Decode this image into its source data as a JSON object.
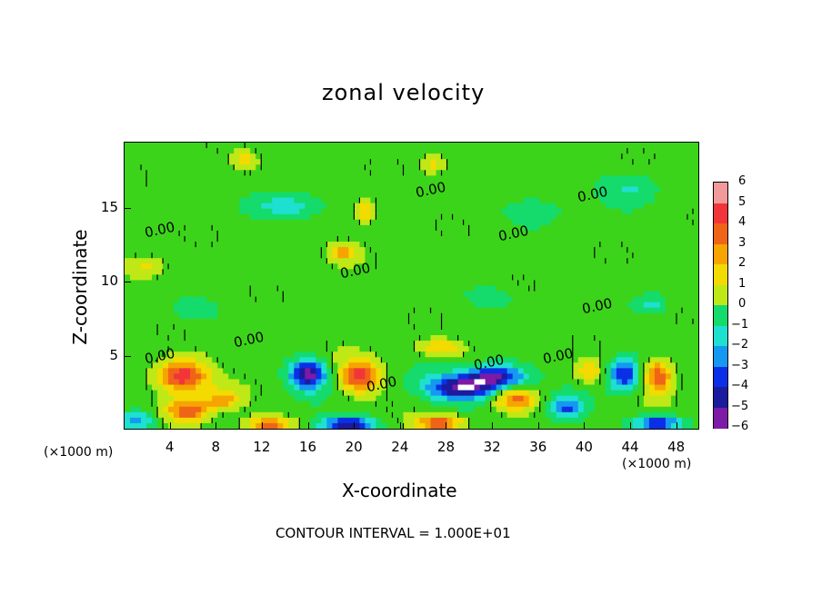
{
  "chart_data": {
    "type": "heatmap",
    "title": "zonal velocity",
    "xlabel": "X-coordinate",
    "ylabel": "Z-coordinate",
    "x_unit": "(×1000 m)",
    "x_ticks": [
      "4",
      "8",
      "12",
      "16",
      "20",
      "24",
      "28",
      "32",
      "36",
      "40",
      "44",
      "48"
    ],
    "y_ticks": [
      "5",
      "10",
      "15"
    ],
    "xlim": [
      0,
      50
    ],
    "ylim": [
      0,
      19.5
    ],
    "colorbar": {
      "ticks": [
        "6",
        "5",
        "4",
        "3",
        "2",
        "1",
        "0",
        "−1",
        "−2",
        "−3",
        "−4",
        "−5",
        "−6"
      ],
      "range": [
        -6,
        6
      ]
    },
    "contour_level": "0.00",
    "contour_label_positions_data": [
      {
        "x": 3.2,
        "y": 13.5
      },
      {
        "x": 26.8,
        "y": 16.2
      },
      {
        "x": 40.8,
        "y": 15.9
      },
      {
        "x": 34.0,
        "y": 13.2
      },
      {
        "x": 20.2,
        "y": 10.7
      },
      {
        "x": 41.2,
        "y": 8.3
      },
      {
        "x": 11.0,
        "y": 6.0
      },
      {
        "x": 3.2,
        "y": 4.9
      },
      {
        "x": 31.8,
        "y": 4.5
      },
      {
        "x": 37.8,
        "y": 4.9
      },
      {
        "x": 22.5,
        "y": 3.0
      }
    ],
    "features": [
      {
        "x": 5.0,
        "y": 3.6,
        "value": 5.5,
        "sx": 2.2,
        "sy": 1.1
      },
      {
        "x": 5.5,
        "y": 1.2,
        "value": 4.5,
        "sx": 1.8,
        "sy": 0.8
      },
      {
        "x": 16.0,
        "y": 3.7,
        "value": -6,
        "sx": 1.6,
        "sy": 1.0
      },
      {
        "x": 20.5,
        "y": 3.6,
        "value": 5.0,
        "sx": 1.7,
        "sy": 1.1
      },
      {
        "x": 29.5,
        "y": 2.8,
        "value": -6,
        "sx": 3.2,
        "sy": 0.9
      },
      {
        "x": 32.5,
        "y": 3.6,
        "value": -5,
        "sx": 2.5,
        "sy": 0.8
      },
      {
        "x": 34.0,
        "y": 2.0,
        "value": 4.0,
        "sx": 2.0,
        "sy": 0.8
      },
      {
        "x": 43.5,
        "y": 3.7,
        "value": -4.5,
        "sx": 1.4,
        "sy": 1.1
      },
      {
        "x": 46.5,
        "y": 3.6,
        "value": 4.5,
        "sx": 1.3,
        "sy": 1.1
      },
      {
        "x": 46.5,
        "y": 0.4,
        "value": -5,
        "sx": 2.0,
        "sy": 0.5
      },
      {
        "x": 27.5,
        "y": 0.4,
        "value": 4.5,
        "sx": 2.0,
        "sy": 0.5
      },
      {
        "x": 19.5,
        "y": 0.3,
        "value": -5.5,
        "sx": 2.4,
        "sy": 0.5
      },
      {
        "x": 12.5,
        "y": 0.3,
        "value": 4.0,
        "sx": 2.0,
        "sy": 0.5
      },
      {
        "x": 1.0,
        "y": 0.5,
        "value": -3.5,
        "sx": 1.6,
        "sy": 0.7
      },
      {
        "x": 8.5,
        "y": 2.0,
        "value": 3.0,
        "sx": 1.5,
        "sy": 0.7
      },
      {
        "x": 38.5,
        "y": 1.4,
        "value": -3.5,
        "sx": 1.6,
        "sy": 0.8
      },
      {
        "x": 40.5,
        "y": 3.8,
        "value": 2.5,
        "sx": 1.3,
        "sy": 0.7
      },
      {
        "x": 14.0,
        "y": 15.2,
        "value": -2.5,
        "sx": 3.0,
        "sy": 0.9
      },
      {
        "x": 21.0,
        "y": 14.8,
        "value": 2.8,
        "sx": 0.9,
        "sy": 0.8
      },
      {
        "x": 19.0,
        "y": 12.0,
        "value": 2.6,
        "sx": 1.2,
        "sy": 0.6
      },
      {
        "x": 10.5,
        "y": 18.2,
        "value": 2.0,
        "sx": 1.0,
        "sy": 0.6
      },
      {
        "x": 27.0,
        "y": 18.0,
        "value": 2.0,
        "sx": 1.0,
        "sy": 0.6
      },
      {
        "x": 27.5,
        "y": 5.5,
        "value": 2.5,
        "sx": 2.0,
        "sy": 0.5
      },
      {
        "x": 46.0,
        "y": 8.5,
        "value": -2.0,
        "sx": 1.5,
        "sy": 0.7
      },
      {
        "x": 44.0,
        "y": 16.5,
        "value": -1.5,
        "sx": 2.5,
        "sy": 1.0
      },
      {
        "x": 2.0,
        "y": 11.0,
        "value": 1.8,
        "sx": 1.5,
        "sy": 0.7
      },
      {
        "x": 32.0,
        "y": 9.0,
        "value": -1.6,
        "sx": 2.0,
        "sy": 0.7
      },
      {
        "x": 6.0,
        "y": 8.0,
        "value": -1.4,
        "sx": 2.0,
        "sy": 0.8
      },
      {
        "x": 36.0,
        "y": 15.0,
        "value": -1.2,
        "sx": 3.0,
        "sy": 1.0
      }
    ]
  },
  "caption": "CONTOUR INTERVAL = 1.000E+01",
  "colors": {
    "cb_6": "#f29a9a",
    "cb_5": "#f2353a",
    "cb_4": "#f06418",
    "cb_3": "#f5a400",
    "cb_2": "#f3da00",
    "cb_1": "#bfe817",
    "cb_0": "#3cd41a",
    "cb_m1": "#14db6b",
    "cb_m2": "#1ee0d0",
    "cb_m3": "#1599f0",
    "cb_m4": "#0b2fe6",
    "cb_m5": "#1b1b9e",
    "cb_m6": "#7d1aa6"
  }
}
